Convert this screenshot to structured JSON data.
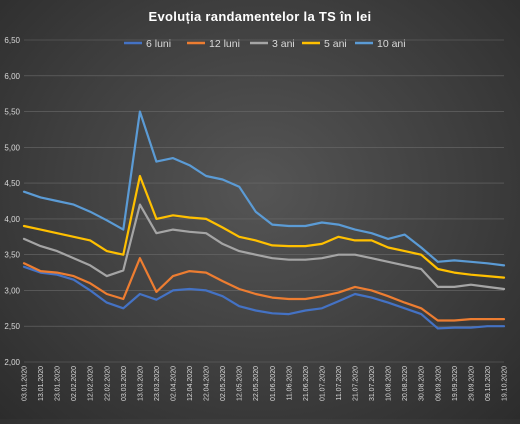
{
  "chart_data": {
    "type": "line",
    "title": "Evoluția randamentelor la TS în lei",
    "xlabel": "",
    "ylabel": "",
    "ylim": [
      2.0,
      6.5
    ],
    "yticks": [
      "2,00",
      "2,50",
      "3,00",
      "3,50",
      "4,00",
      "4,50",
      "5,00",
      "5,50",
      "6,00",
      "6,50"
    ],
    "grid": true,
    "legend": "top",
    "x": [
      "03.01.2020",
      "13.01.2020",
      "23.01.2020",
      "02.02.2020",
      "12.02.2020",
      "22.02.2020",
      "03.03.2020",
      "13.03.2020",
      "23.03.2020",
      "02.04.2020",
      "12.04.2020",
      "22.04.2020",
      "02.05.2020",
      "12.05.2020",
      "22.05.2020",
      "01.06.2020",
      "11.06.2020",
      "21.06.2020",
      "01.07.2020",
      "11.07.2020",
      "21.07.2020",
      "31.07.2020",
      "10.08.2020",
      "20.08.2020",
      "30.08.2020",
      "09.09.2020",
      "19.09.2020",
      "29.09.2020",
      "09.10.2020",
      "19.10.2020"
    ],
    "series": [
      {
        "name": "6 luni",
        "color": "#4472c4",
        "values": [
          3.33,
          3.25,
          3.22,
          3.15,
          3.0,
          2.83,
          2.75,
          2.95,
          2.87,
          3.0,
          3.02,
          3.0,
          2.92,
          2.78,
          2.72,
          2.68,
          2.67,
          2.72,
          2.75,
          2.85,
          2.95,
          2.9,
          2.83,
          2.75,
          2.67,
          2.47,
          2.48,
          2.48,
          2.5,
          2.5
        ]
      },
      {
        "name": "12 luni",
        "color": "#ed7d31",
        "values": [
          3.38,
          3.27,
          3.25,
          3.2,
          3.1,
          2.95,
          2.88,
          3.45,
          2.98,
          3.2,
          3.27,
          3.25,
          3.13,
          3.02,
          2.95,
          2.9,
          2.88,
          2.88,
          2.92,
          2.97,
          3.05,
          3.0,
          2.92,
          2.83,
          2.75,
          2.58,
          2.58,
          2.6,
          2.6,
          2.6
        ]
      },
      {
        "name": "3 ani",
        "color": "#a5a5a5",
        "values": [
          3.72,
          3.62,
          3.55,
          3.45,
          3.35,
          3.2,
          3.28,
          4.2,
          3.8,
          3.85,
          3.82,
          3.8,
          3.65,
          3.55,
          3.5,
          3.45,
          3.43,
          3.43,
          3.45,
          3.5,
          3.5,
          3.45,
          3.4,
          3.35,
          3.3,
          3.05,
          3.05,
          3.08,
          3.05,
          3.02
        ]
      },
      {
        "name": "5 ani",
        "color": "#ffc000",
        "values": [
          3.9,
          3.85,
          3.8,
          3.75,
          3.7,
          3.55,
          3.5,
          4.6,
          4.0,
          4.05,
          4.02,
          4.0,
          3.88,
          3.75,
          3.7,
          3.63,
          3.62,
          3.62,
          3.65,
          3.75,
          3.7,
          3.7,
          3.6,
          3.55,
          3.5,
          3.3,
          3.25,
          3.22,
          3.2,
          3.18
        ]
      },
      {
        "name": "10 ani",
        "color": "#5b9bd5",
        "values": [
          4.38,
          4.3,
          4.25,
          4.2,
          4.1,
          3.98,
          3.85,
          5.5,
          4.8,
          4.85,
          4.75,
          4.6,
          4.55,
          4.45,
          4.1,
          3.92,
          3.9,
          3.9,
          3.95,
          3.92,
          3.85,
          3.8,
          3.72,
          3.78,
          3.6,
          3.4,
          3.42,
          3.4,
          3.38,
          3.35
        ]
      }
    ]
  }
}
